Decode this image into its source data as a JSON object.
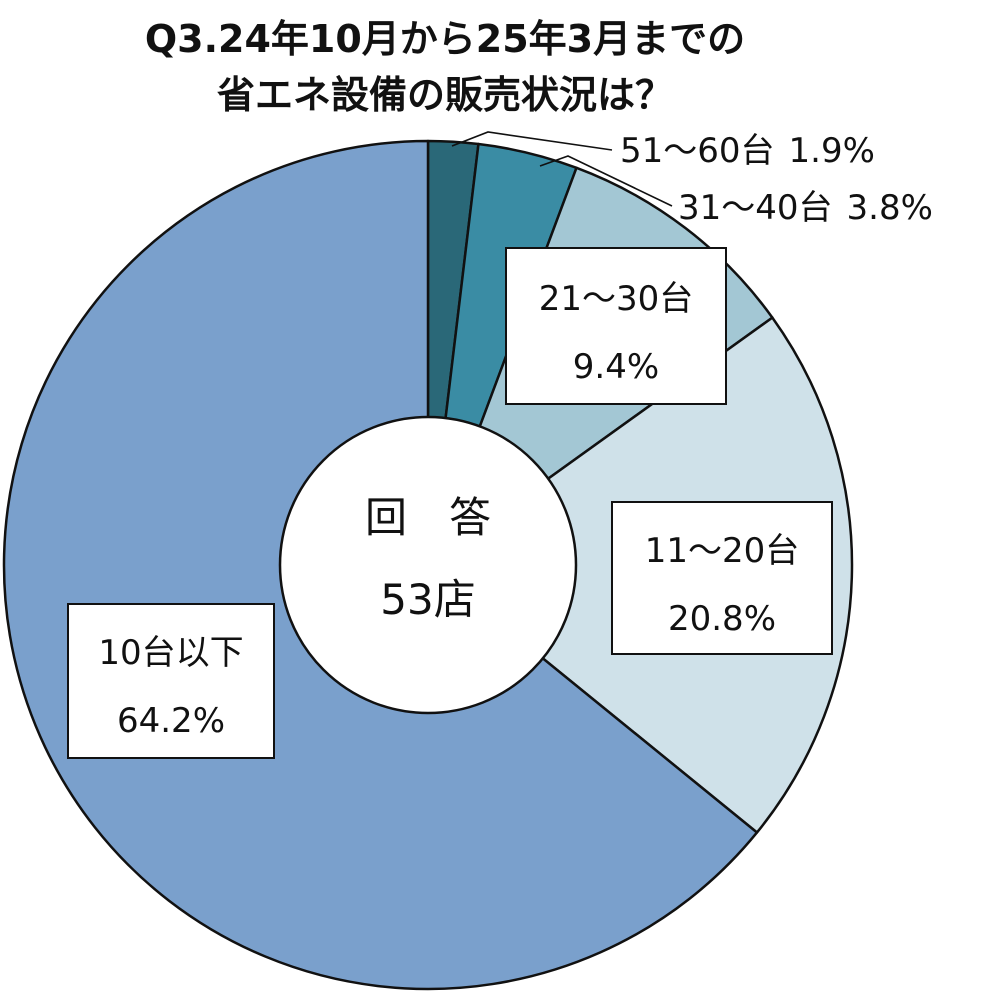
{
  "chart_data": {
    "type": "pie",
    "title_line1": "Q3.24年10月から25年3月までの",
    "title_line2": "省エネ設備の販売状況は？",
    "center": {
      "line1": "回　答",
      "line2": "53店"
    },
    "slices": [
      {
        "category": "51～60台",
        "value": 1.9,
        "value_label": "1.9%",
        "color": "#2a6878"
      },
      {
        "category": "31～40台",
        "value": 3.8,
        "value_label": "3.8%",
        "color": "#3a8ca4"
      },
      {
        "category": "21～30台",
        "value": 9.4,
        "value_label": "9.4%",
        "color": "#a3c7d4"
      },
      {
        "category": "11～20台",
        "value": 20.8,
        "value_label": "20.8%",
        "color": "#cfe1e9"
      },
      {
        "category": "10台以下",
        "value": 64.2,
        "value_label": "64.2%",
        "color": "#7aa0cc"
      }
    ]
  }
}
